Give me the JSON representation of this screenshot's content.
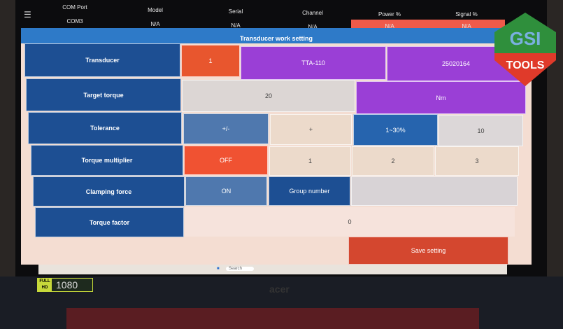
{
  "header": {
    "menu_icon": "hamburger-icon",
    "columns": [
      {
        "label": "COM Port",
        "value": "COM3"
      },
      {
        "label": "Model",
        "value": "N/A"
      },
      {
        "label": "Serial",
        "value": "N/A"
      },
      {
        "label": "Channel",
        "value": "N/A"
      },
      {
        "label": "Power %",
        "value": "N/A"
      },
      {
        "label": "Signal %",
        "value": "N/A"
      }
    ]
  },
  "title": "Transducer work setting",
  "rows": {
    "transducer": {
      "label": "Transducer",
      "index": "1",
      "model": "TTA-110",
      "serial": "25020164"
    },
    "target": {
      "label": "Target torque",
      "value": "20",
      "unit": "Nm"
    },
    "tolerance": {
      "label": "Tolerance",
      "sign": "+/-",
      "plus": "+",
      "range": "1~30%",
      "value": "10"
    },
    "multiplier": {
      "label": "Torque multiplier",
      "off": "OFF",
      "o1": "1",
      "o2": "2",
      "o3": "3"
    },
    "clamping": {
      "label": "Clamping force",
      "on": "ON",
      "group": "Group number"
    },
    "factor": {
      "label": "Torque factor",
      "value": "0"
    }
  },
  "save_label": "Save setting",
  "taskbar": {
    "search": "Search"
  },
  "overlay": {
    "logo": "GSI TOOLS",
    "badge_hd": "FULL HD",
    "badge_res": "1080"
  },
  "colors": {
    "label_blue": "#1d4f93",
    "orange": "#e8562e",
    "purple": "#9a3fd6",
    "save_red": "#d4472f",
    "na_red": "#f05a4a"
  }
}
